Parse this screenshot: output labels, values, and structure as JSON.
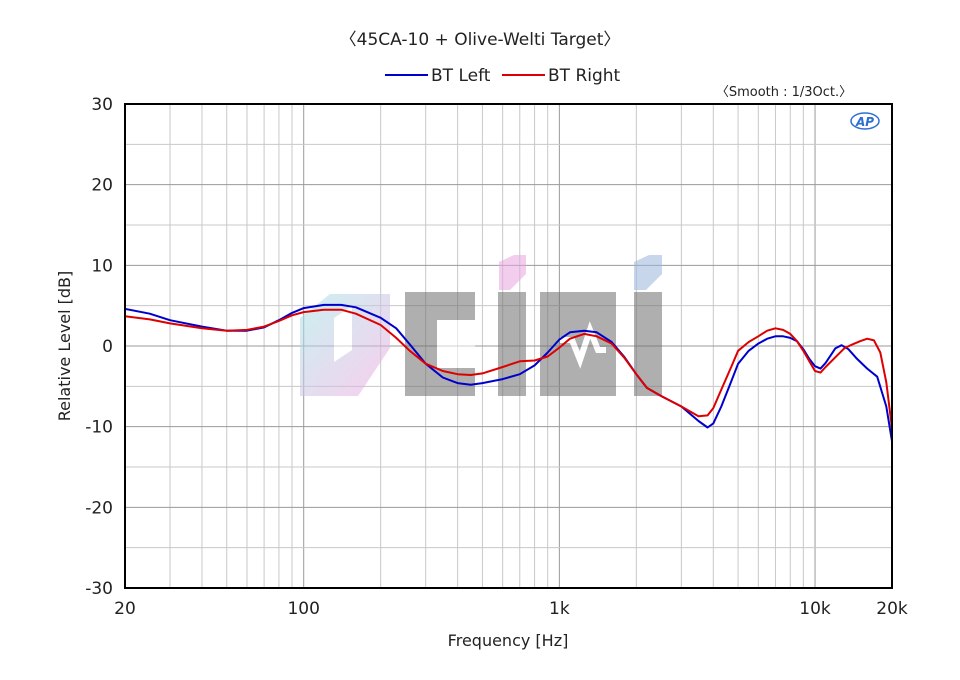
{
  "chart_data": {
    "type": "line",
    "title": "〈45CA-10 + Olive-Welti Target〉",
    "note": "〈Smooth : 1/3Oct.〉",
    "badge": "AP",
    "watermark": "CIMI",
    "xlabel": "Frequency [Hz]",
    "ylabel": "Relative Level [dB]",
    "xscale": "log",
    "xlim": [
      20,
      20000
    ],
    "ylim": [
      -30,
      30
    ],
    "grid": true,
    "legend_position": "top-center",
    "x_ticks": [
      {
        "value": 20,
        "label": "20"
      },
      {
        "value": 100,
        "label": "100"
      },
      {
        "value": 1000,
        "label": "1k"
      },
      {
        "value": 10000,
        "label": "10k"
      },
      {
        "value": 20000,
        "label": "20k"
      }
    ],
    "y_ticks": [
      30,
      20,
      10,
      0,
      -10,
      -20,
      -30
    ],
    "y_tick_labels": [
      "30",
      "20",
      "10",
      "0",
      "-10",
      "-20",
      "-30"
    ],
    "series": [
      {
        "name": "BT Left",
        "color": "#0000cc",
        "points": [
          [
            20,
            4.6
          ],
          [
            25,
            4.0
          ],
          [
            30,
            3.2
          ],
          [
            40,
            2.4
          ],
          [
            50,
            1.9
          ],
          [
            60,
            1.9
          ],
          [
            70,
            2.3
          ],
          [
            80,
            3.2
          ],
          [
            90,
            4.1
          ],
          [
            100,
            4.7
          ],
          [
            120,
            5.1
          ],
          [
            140,
            5.1
          ],
          [
            160,
            4.8
          ],
          [
            200,
            3.5
          ],
          [
            230,
            2.2
          ],
          [
            260,
            0.2
          ],
          [
            300,
            -2.2
          ],
          [
            350,
            -3.9
          ],
          [
            400,
            -4.6
          ],
          [
            450,
            -4.8
          ],
          [
            500,
            -4.6
          ],
          [
            600,
            -4.1
          ],
          [
            700,
            -3.5
          ],
          [
            800,
            -2.4
          ],
          [
            900,
            -0.8
          ],
          [
            1000,
            0.8
          ],
          [
            1100,
            1.7
          ],
          [
            1250,
            1.9
          ],
          [
            1400,
            1.7
          ],
          [
            1600,
            0.5
          ],
          [
            1800,
            -1.4
          ],
          [
            2000,
            -3.5
          ],
          [
            2200,
            -5.2
          ],
          [
            2500,
            -6.2
          ],
          [
            3000,
            -7.5
          ],
          [
            3500,
            -9.3
          ],
          [
            3800,
            -10.1
          ],
          [
            4000,
            -9.6
          ],
          [
            4300,
            -7.5
          ],
          [
            4700,
            -4.4
          ],
          [
            5000,
            -2.2
          ],
          [
            5500,
            -0.6
          ],
          [
            6000,
            0.3
          ],
          [
            6500,
            0.9
          ],
          [
            7000,
            1.2
          ],
          [
            7500,
            1.2
          ],
          [
            8000,
            1.0
          ],
          [
            8500,
            0.6
          ],
          [
            9000,
            -0.4
          ],
          [
            9500,
            -1.6
          ],
          [
            10000,
            -2.5
          ],
          [
            10500,
            -2.8
          ],
          [
            11000,
            -2.1
          ],
          [
            12000,
            -0.3
          ],
          [
            12700,
            0.1
          ],
          [
            13500,
            -0.4
          ],
          [
            14500,
            -1.5
          ],
          [
            16000,
            -2.8
          ],
          [
            17500,
            -3.8
          ],
          [
            19000,
            -7.5
          ],
          [
            20000,
            -11.8
          ]
        ]
      },
      {
        "name": "BT Right",
        "color": "#dd0000",
        "points": [
          [
            20,
            3.7
          ],
          [
            25,
            3.3
          ],
          [
            30,
            2.8
          ],
          [
            40,
            2.2
          ],
          [
            50,
            1.9
          ],
          [
            60,
            2.0
          ],
          [
            70,
            2.4
          ],
          [
            80,
            3.1
          ],
          [
            90,
            3.8
          ],
          [
            100,
            4.2
          ],
          [
            120,
            4.5
          ],
          [
            140,
            4.5
          ],
          [
            160,
            4.0
          ],
          [
            200,
            2.6
          ],
          [
            230,
            1.0
          ],
          [
            260,
            -0.6
          ],
          [
            300,
            -2.2
          ],
          [
            350,
            -3.1
          ],
          [
            400,
            -3.5
          ],
          [
            450,
            -3.6
          ],
          [
            500,
            -3.4
          ],
          [
            600,
            -2.6
          ],
          [
            700,
            -1.9
          ],
          [
            800,
            -1.8
          ],
          [
            900,
            -1.3
          ],
          [
            1000,
            -0.2
          ],
          [
            1100,
            0.9
          ],
          [
            1250,
            1.5
          ],
          [
            1400,
            1.2
          ],
          [
            1600,
            0.3
          ],
          [
            1800,
            -1.5
          ],
          [
            2000,
            -3.5
          ],
          [
            2200,
            -5.2
          ],
          [
            2500,
            -6.2
          ],
          [
            3000,
            -7.5
          ],
          [
            3500,
            -8.7
          ],
          [
            3800,
            -8.6
          ],
          [
            4000,
            -7.7
          ],
          [
            4300,
            -5.4
          ],
          [
            4700,
            -2.6
          ],
          [
            5000,
            -0.6
          ],
          [
            5500,
            0.5
          ],
          [
            6000,
            1.2
          ],
          [
            6500,
            1.9
          ],
          [
            7000,
            2.2
          ],
          [
            7500,
            2.0
          ],
          [
            8000,
            1.5
          ],
          [
            8500,
            0.6
          ],
          [
            9000,
            -0.6
          ],
          [
            9500,
            -1.9
          ],
          [
            10000,
            -3.1
          ],
          [
            10500,
            -3.3
          ],
          [
            11000,
            -2.6
          ],
          [
            12000,
            -1.4
          ],
          [
            13000,
            -0.3
          ],
          [
            14000,
            0.2
          ],
          [
            15000,
            0.6
          ],
          [
            16000,
            0.9
          ],
          [
            17000,
            0.7
          ],
          [
            18000,
            -0.8
          ],
          [
            19000,
            -4.5
          ],
          [
            20000,
            -10.2
          ]
        ]
      }
    ]
  }
}
